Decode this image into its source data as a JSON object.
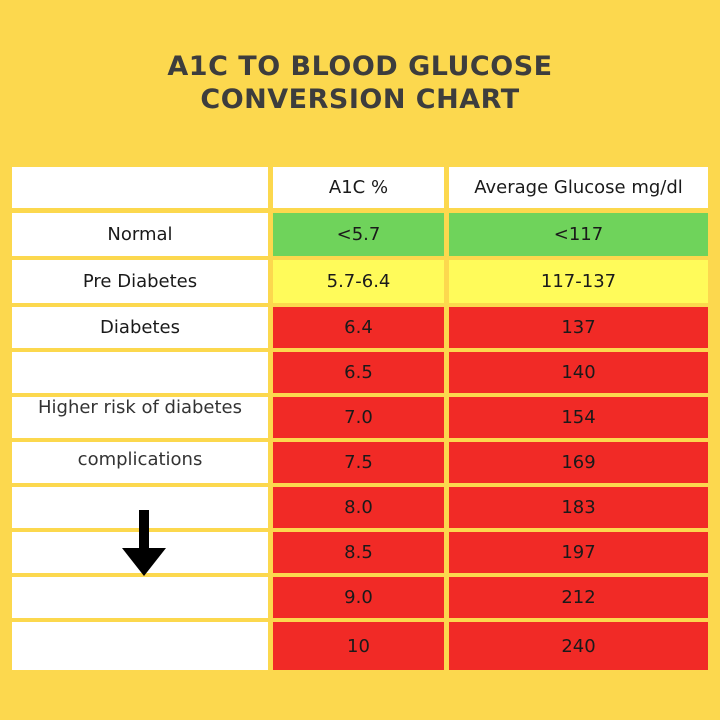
{
  "title": {
    "line1": "A1C TO BLOOD GLUCOSE",
    "line2": "CONVERSION CHART"
  },
  "colors": {
    "background": "#fcd84e",
    "header": "#ffffff",
    "normal": "#6fd35b",
    "pre_diabetes": "#fffb5a",
    "diabetes": "#f12a26"
  },
  "chart_data": {
    "type": "table",
    "columns": [
      "",
      "A1C %",
      "Average Glucose mg/dl"
    ],
    "rows": [
      {
        "category": "Normal",
        "a1c": "<5.7",
        "glucose": "<117",
        "color": "#6fd35b"
      },
      {
        "category": "Pre Diabetes",
        "a1c": "5.7-6.4",
        "glucose": "117-137",
        "color": "#fffb5a"
      },
      {
        "category": "Diabetes",
        "a1c": "6.4",
        "glucose": "137",
        "color": "#f12a26"
      },
      {
        "category": "",
        "a1c": "6.5",
        "glucose": "140",
        "color": "#f12a26"
      },
      {
        "category": "",
        "a1c": "7.0",
        "glucose": "154",
        "color": "#f12a26"
      },
      {
        "category": "",
        "a1c": "7.5",
        "glucose": "169",
        "color": "#f12a26"
      },
      {
        "category": "",
        "a1c": "8.0",
        "glucose": "183",
        "color": "#f12a26"
      },
      {
        "category": "",
        "a1c": "8.5",
        "glucose": "197",
        "color": "#f12a26"
      },
      {
        "category": "",
        "a1c": "9.0",
        "glucose": "212",
        "color": "#f12a26"
      },
      {
        "category": "",
        "a1c": "10",
        "glucose": "240",
        "color": "#f12a26"
      }
    ],
    "annotation": {
      "line1": "Higher risk of diabetes",
      "line2": "complications",
      "icon": "down-arrow-icon"
    }
  }
}
